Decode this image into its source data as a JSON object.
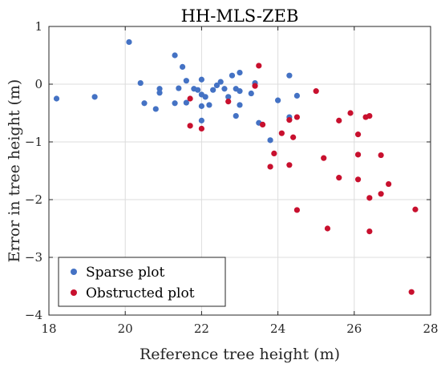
{
  "chart_data": {
    "type": "scatter",
    "title": "HH-MLS-ZEB",
    "xlabel": "Reference tree height (m)",
    "ylabel": "Error in tree height (m)",
    "xlim": [
      18,
      28
    ],
    "ylim": [
      -4,
      1
    ],
    "xticks": [
      18,
      20,
      22,
      24,
      26,
      28
    ],
    "yticks": [
      1,
      0,
      -1,
      -2,
      -3,
      -4
    ],
    "grid": true,
    "legend_position": "bottom-left",
    "series": [
      {
        "name": "Sparse plot",
        "color": "#4472c4",
        "points": [
          [
            18.2,
            -0.25
          ],
          [
            19.2,
            -0.22
          ],
          [
            20.1,
            0.73
          ],
          [
            20.4,
            0.02
          ],
          [
            20.5,
            -0.33
          ],
          [
            20.8,
            -0.43
          ],
          [
            20.9,
            -0.08
          ],
          [
            20.9,
            -0.15
          ],
          [
            21.3,
            0.5
          ],
          [
            21.3,
            -0.33
          ],
          [
            21.4,
            -0.07
          ],
          [
            21.5,
            0.3
          ],
          [
            21.6,
            0.06
          ],
          [
            21.6,
            -0.32
          ],
          [
            21.8,
            -0.08
          ],
          [
            21.9,
            -0.1
          ],
          [
            22.0,
            0.08
          ],
          [
            22.0,
            -0.18
          ],
          [
            22.0,
            -0.38
          ],
          [
            22.0,
            -0.63
          ],
          [
            22.1,
            -0.22
          ],
          [
            22.2,
            -0.36
          ],
          [
            22.3,
            -0.1
          ],
          [
            22.4,
            -0.02
          ],
          [
            22.5,
            0.04
          ],
          [
            22.6,
            -0.08
          ],
          [
            22.7,
            -0.22
          ],
          [
            22.8,
            0.15
          ],
          [
            22.9,
            -0.08
          ],
          [
            22.9,
            -0.55
          ],
          [
            23.0,
            0.2
          ],
          [
            23.0,
            -0.12
          ],
          [
            23.0,
            -0.36
          ],
          [
            23.3,
            -0.16
          ],
          [
            23.4,
            0.02
          ],
          [
            23.5,
            -0.67
          ],
          [
            23.8,
            -0.97
          ],
          [
            24.0,
            -0.28
          ],
          [
            24.3,
            0.15
          ],
          [
            24.3,
            -0.57
          ],
          [
            24.5,
            -0.2
          ]
        ]
      },
      {
        "name": "Obstructed plot",
        "color": "#c8102e",
        "points": [
          [
            21.7,
            -0.25
          ],
          [
            21.7,
            -0.72
          ],
          [
            22.0,
            -0.77
          ],
          [
            22.7,
            -0.3
          ],
          [
            23.4,
            -0.03
          ],
          [
            23.5,
            0.32
          ],
          [
            23.6,
            -0.7
          ],
          [
            23.8,
            -1.43
          ],
          [
            23.9,
            -1.2
          ],
          [
            24.1,
            -0.85
          ],
          [
            24.3,
            -0.62
          ],
          [
            24.3,
            -1.4
          ],
          [
            24.4,
            -0.92
          ],
          [
            24.5,
            -0.57
          ],
          [
            24.5,
            -2.18
          ],
          [
            25.0,
            -0.12
          ],
          [
            25.2,
            -1.28
          ],
          [
            25.3,
            -2.5
          ],
          [
            25.6,
            -0.63
          ],
          [
            25.6,
            -1.62
          ],
          [
            25.9,
            -0.5
          ],
          [
            26.1,
            -0.87
          ],
          [
            26.1,
            -1.22
          ],
          [
            26.1,
            -1.65
          ],
          [
            26.3,
            -0.57
          ],
          [
            26.4,
            -0.55
          ],
          [
            26.4,
            -1.97
          ],
          [
            26.4,
            -2.55
          ],
          [
            26.7,
            -1.23
          ],
          [
            26.7,
            -1.9
          ],
          [
            26.9,
            -1.73
          ],
          [
            27.5,
            -3.6
          ],
          [
            27.6,
            -2.17
          ]
        ]
      }
    ]
  }
}
